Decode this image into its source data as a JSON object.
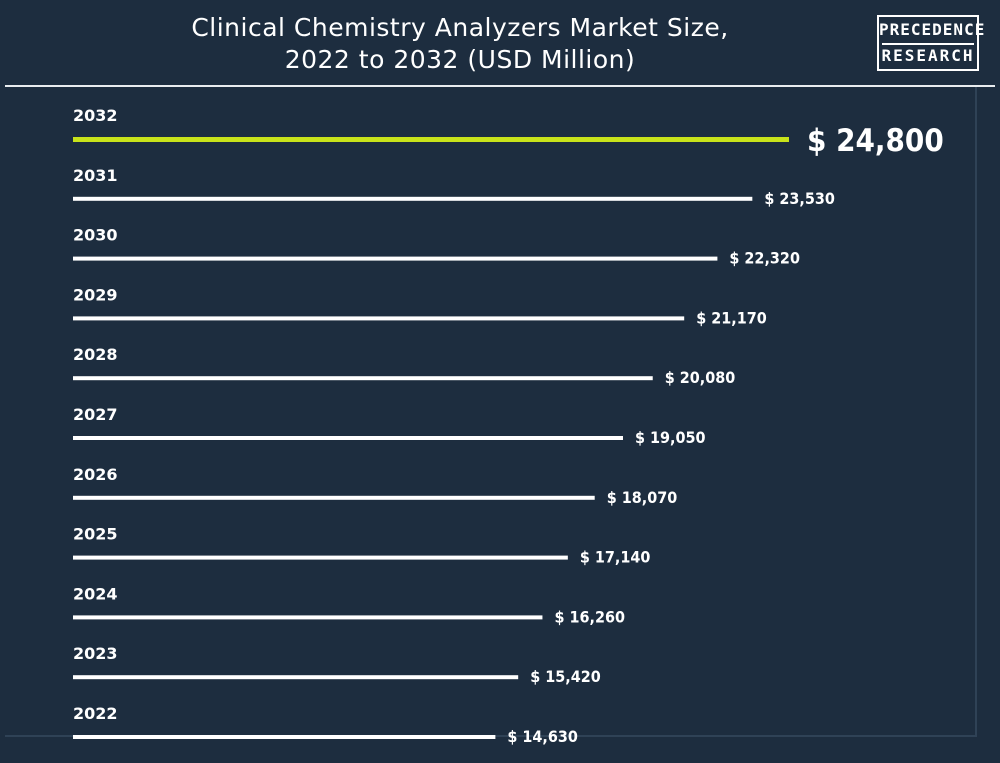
{
  "chart_data": {
    "type": "bar",
    "orientation": "horizontal",
    "title": "Clinical Chemistry Analyzers Market Size, 2022 to 2032 (USD Million)",
    "title_lines": [
      "Clinical Chemistry Analyzers Market Size,",
      "2022 to 2032 (USD Million)"
    ],
    "categories": [
      "2032",
      "2031",
      "2030",
      "2029",
      "2028",
      "2027",
      "2026",
      "2025",
      "2024",
      "2023",
      "2022"
    ],
    "values": [
      24800,
      23530,
      22320,
      21170,
      20080,
      19050,
      18070,
      17140,
      16260,
      15420,
      14630
    ],
    "value_labels": [
      "$ 24,800",
      "$ 23,530",
      "$ 22,320",
      "$ 21,170",
      "$ 20,080",
      "$ 19,050",
      "$ 18,070",
      "$ 17,140",
      "$ 16,260",
      "$ 15,420",
      "$ 14,630"
    ],
    "highlight_index": 0,
    "colors": {
      "highlight": "#c8e31a",
      "bar": "#ffffff",
      "background": "#1d2d3f",
      "text": "#ffffff"
    },
    "grid": false,
    "legend": "none"
  },
  "logo": {
    "line1": "PRECEDENCE",
    "line2": "RESEARCH"
  }
}
